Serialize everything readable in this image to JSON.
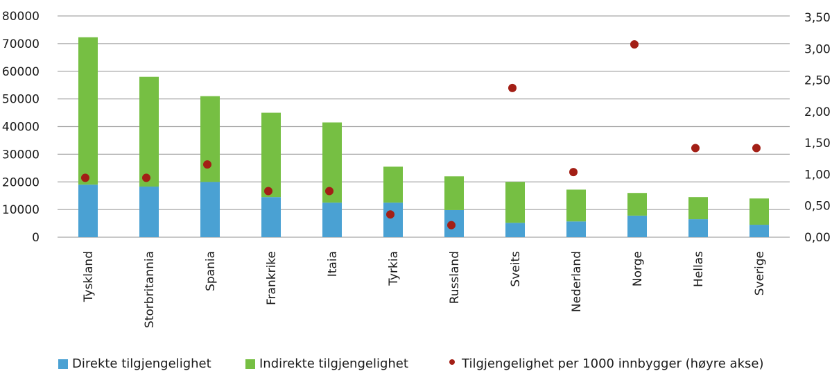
{
  "chart_data": {
    "type": "bar",
    "stacked": true,
    "title": "",
    "xlabel": "",
    "ylabel": "",
    "categories": [
      "Tyskland",
      "Storbritannia",
      "Spania",
      "Frankrike",
      "Itaia",
      "Tyrkia",
      "Russland",
      "Sveits",
      "Nederland",
      "Norge",
      "Hellas",
      "Sverige"
    ],
    "series": [
      {
        "name": "Direkte tilgjengelighet",
        "type": "bar",
        "axis": "left",
        "color": "#4aa1d3",
        "values": [
          19000,
          18300,
          20000,
          14500,
          12500,
          12500,
          9800,
          5200,
          5700,
          7800,
          6500,
          4500
        ]
      },
      {
        "name": "Indirekte tilgjengelighet",
        "type": "bar",
        "axis": "left",
        "color": "#76bf43",
        "values": [
          53300,
          39700,
          31000,
          30500,
          29000,
          13000,
          12200,
          14800,
          11500,
          8200,
          8000,
          9500
        ]
      },
      {
        "name": "Tilgjengelighet per 1000 innbygger (høyre akse)",
        "type": "scatter",
        "axis": "right",
        "color": "#a31f16",
        "values": [
          0.94,
          0.94,
          1.15,
          0.73,
          0.73,
          0.36,
          0.19,
          2.36,
          1.03,
          3.05,
          1.41,
          1.41
        ]
      }
    ],
    "totals": [
      72300,
      58000,
      51000,
      45000,
      41500,
      25500,
      22000,
      20000,
      17200,
      16000,
      14500,
      14000
    ],
    "ylim": [
      0,
      80000
    ],
    "y_ticks": [
      "80000",
      "70000",
      "60000",
      "50000",
      "40000",
      "30000",
      "20000",
      "10000",
      "0"
    ],
    "y2lim": [
      0,
      3.5
    ],
    "y2_ticks": [
      "3,50",
      "3,00",
      "2,50",
      "2,00",
      "1,50",
      "1,00",
      "0,50",
      "0,00"
    ],
    "grid": true,
    "legend_position": "bottom"
  },
  "legend": {
    "items": [
      {
        "label": "Direkte tilgjengelighet",
        "color": "#4aa1d3",
        "shape": "square"
      },
      {
        "label": "Indirekte tilgjengelighet",
        "color": "#76bf43",
        "shape": "square"
      },
      {
        "label": "Tilgjengelighet per 1000 innbygger (høyre akse)",
        "color": "#a31f16",
        "shape": "dot"
      }
    ]
  },
  "colors": {
    "gridline": "#a6a6a6",
    "axis": "#a6a6a6"
  }
}
